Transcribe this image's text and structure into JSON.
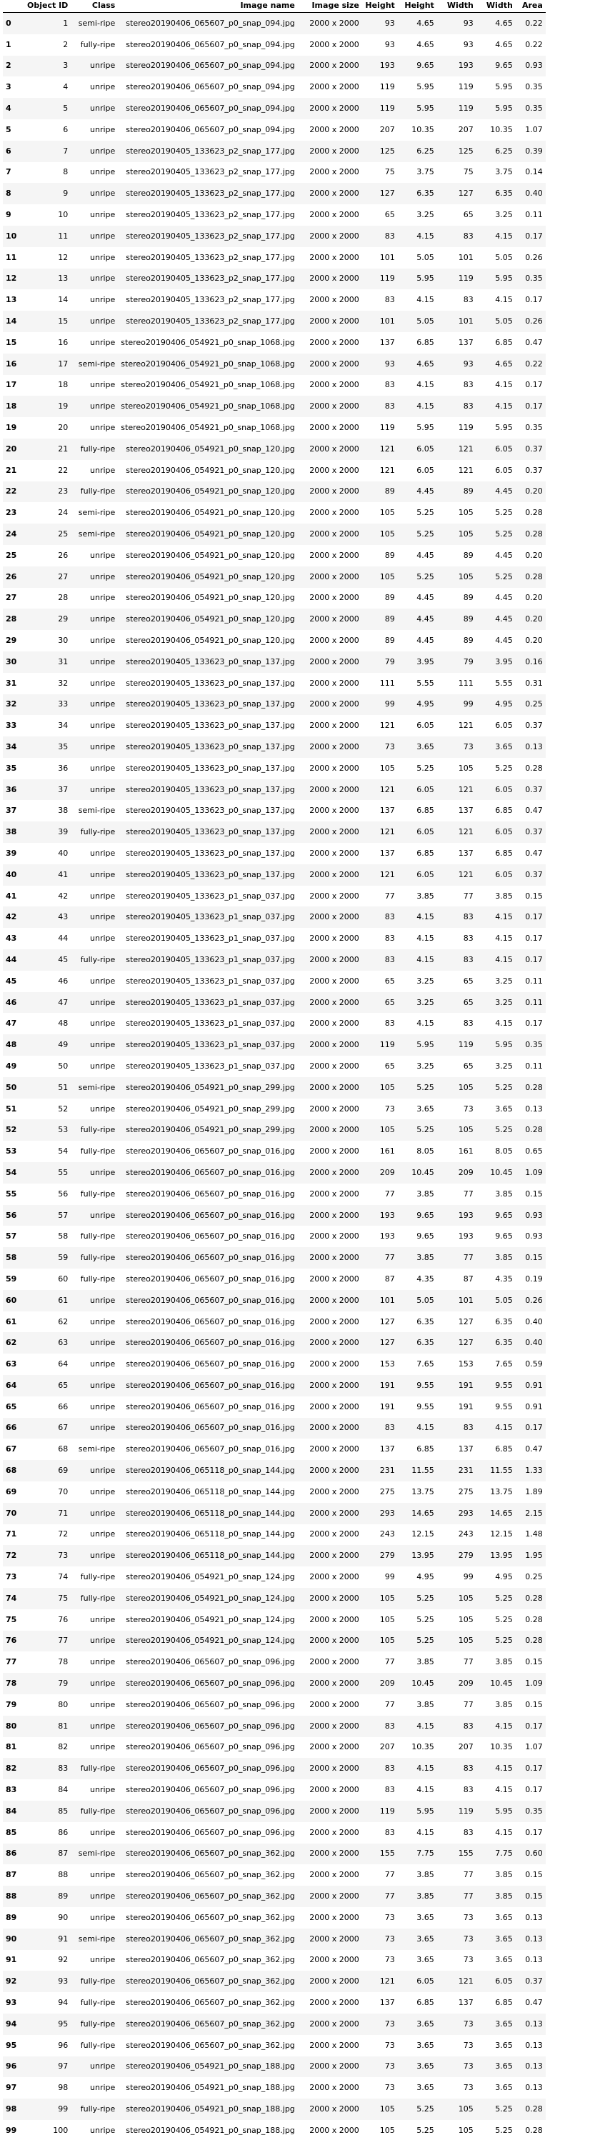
{
  "columns": [
    "",
    "Object ID",
    "Class",
    "Image name",
    "Image size",
    "Height",
    "Height",
    "Width",
    "Width",
    "Area"
  ],
  "rows": [
    [
      "0",
      "1",
      "semi-ripe",
      "stereo20190406_065607_p0_snap_094.jpg",
      "2000 x 2000",
      "93",
      "4.65",
      "93",
      "4.65",
      "0.22"
    ],
    [
      "1",
      "2",
      "fully-ripe",
      "stereo20190406_065607_p0_snap_094.jpg",
      "2000 x 2000",
      "93",
      "4.65",
      "93",
      "4.65",
      "0.22"
    ],
    [
      "2",
      "3",
      "unripe",
      "stereo20190406_065607_p0_snap_094.jpg",
      "2000 x 2000",
      "193",
      "9.65",
      "193",
      "9.65",
      "0.93"
    ],
    [
      "3",
      "4",
      "unripe",
      "stereo20190406_065607_p0_snap_094.jpg",
      "2000 x 2000",
      "119",
      "5.95",
      "119",
      "5.95",
      "0.35"
    ],
    [
      "4",
      "5",
      "unripe",
      "stereo20190406_065607_p0_snap_094.jpg",
      "2000 x 2000",
      "119",
      "5.95",
      "119",
      "5.95",
      "0.35"
    ],
    [
      "5",
      "6",
      "unripe",
      "stereo20190406_065607_p0_snap_094.jpg",
      "2000 x 2000",
      "207",
      "10.35",
      "207",
      "10.35",
      "1.07"
    ],
    [
      "6",
      "7",
      "unripe",
      "stereo20190405_133623_p2_snap_177.jpg",
      "2000 x 2000",
      "125",
      "6.25",
      "125",
      "6.25",
      "0.39"
    ],
    [
      "7",
      "8",
      "unripe",
      "stereo20190405_133623_p2_snap_177.jpg",
      "2000 x 2000",
      "75",
      "3.75",
      "75",
      "3.75",
      "0.14"
    ],
    [
      "8",
      "9",
      "unripe",
      "stereo20190405_133623_p2_snap_177.jpg",
      "2000 x 2000",
      "127",
      "6.35",
      "127",
      "6.35",
      "0.40"
    ],
    [
      "9",
      "10",
      "unripe",
      "stereo20190405_133623_p2_snap_177.jpg",
      "2000 x 2000",
      "65",
      "3.25",
      "65",
      "3.25",
      "0.11"
    ],
    [
      "10",
      "11",
      "unripe",
      "stereo20190405_133623_p2_snap_177.jpg",
      "2000 x 2000",
      "83",
      "4.15",
      "83",
      "4.15",
      "0.17"
    ],
    [
      "11",
      "12",
      "unripe",
      "stereo20190405_133623_p2_snap_177.jpg",
      "2000 x 2000",
      "101",
      "5.05",
      "101",
      "5.05",
      "0.26"
    ],
    [
      "12",
      "13",
      "unripe",
      "stereo20190405_133623_p2_snap_177.jpg",
      "2000 x 2000",
      "119",
      "5.95",
      "119",
      "5.95",
      "0.35"
    ],
    [
      "13",
      "14",
      "unripe",
      "stereo20190405_133623_p2_snap_177.jpg",
      "2000 x 2000",
      "83",
      "4.15",
      "83",
      "4.15",
      "0.17"
    ],
    [
      "14",
      "15",
      "unripe",
      "stereo20190405_133623_p2_snap_177.jpg",
      "2000 x 2000",
      "101",
      "5.05",
      "101",
      "5.05",
      "0.26"
    ],
    [
      "15",
      "16",
      "unripe",
      "stereo20190406_054921_p0_snap_1068.jpg",
      "2000 x 2000",
      "137",
      "6.85",
      "137",
      "6.85",
      "0.47"
    ],
    [
      "16",
      "17",
      "semi-ripe",
      "stereo20190406_054921_p0_snap_1068.jpg",
      "2000 x 2000",
      "93",
      "4.65",
      "93",
      "4.65",
      "0.22"
    ],
    [
      "17",
      "18",
      "unripe",
      "stereo20190406_054921_p0_snap_1068.jpg",
      "2000 x 2000",
      "83",
      "4.15",
      "83",
      "4.15",
      "0.17"
    ],
    [
      "18",
      "19",
      "unripe",
      "stereo20190406_054921_p0_snap_1068.jpg",
      "2000 x 2000",
      "83",
      "4.15",
      "83",
      "4.15",
      "0.17"
    ],
    [
      "19",
      "20",
      "unripe",
      "stereo20190406_054921_p0_snap_1068.jpg",
      "2000 x 2000",
      "119",
      "5.95",
      "119",
      "5.95",
      "0.35"
    ],
    [
      "20",
      "21",
      "fully-ripe",
      "stereo20190406_054921_p0_snap_120.jpg",
      "2000 x 2000",
      "121",
      "6.05",
      "121",
      "6.05",
      "0.37"
    ],
    [
      "21",
      "22",
      "unripe",
      "stereo20190406_054921_p0_snap_120.jpg",
      "2000 x 2000",
      "121",
      "6.05",
      "121",
      "6.05",
      "0.37"
    ],
    [
      "22",
      "23",
      "fully-ripe",
      "stereo20190406_054921_p0_snap_120.jpg",
      "2000 x 2000",
      "89",
      "4.45",
      "89",
      "4.45",
      "0.20"
    ],
    [
      "23",
      "24",
      "semi-ripe",
      "stereo20190406_054921_p0_snap_120.jpg",
      "2000 x 2000",
      "105",
      "5.25",
      "105",
      "5.25",
      "0.28"
    ],
    [
      "24",
      "25",
      "semi-ripe",
      "stereo20190406_054921_p0_snap_120.jpg",
      "2000 x 2000",
      "105",
      "5.25",
      "105",
      "5.25",
      "0.28"
    ],
    [
      "25",
      "26",
      "unripe",
      "stereo20190406_054921_p0_snap_120.jpg",
      "2000 x 2000",
      "89",
      "4.45",
      "89",
      "4.45",
      "0.20"
    ],
    [
      "26",
      "27",
      "unripe",
      "stereo20190406_054921_p0_snap_120.jpg",
      "2000 x 2000",
      "105",
      "5.25",
      "105",
      "5.25",
      "0.28"
    ],
    [
      "27",
      "28",
      "unripe",
      "stereo20190406_054921_p0_snap_120.jpg",
      "2000 x 2000",
      "89",
      "4.45",
      "89",
      "4.45",
      "0.20"
    ],
    [
      "28",
      "29",
      "unripe",
      "stereo20190406_054921_p0_snap_120.jpg",
      "2000 x 2000",
      "89",
      "4.45",
      "89",
      "4.45",
      "0.20"
    ],
    [
      "29",
      "30",
      "unripe",
      "stereo20190406_054921_p0_snap_120.jpg",
      "2000 x 2000",
      "89",
      "4.45",
      "89",
      "4.45",
      "0.20"
    ],
    [
      "30",
      "31",
      "unripe",
      "stereo20190405_133623_p0_snap_137.jpg",
      "2000 x 2000",
      "79",
      "3.95",
      "79",
      "3.95",
      "0.16"
    ],
    [
      "31",
      "32",
      "unripe",
      "stereo20190405_133623_p0_snap_137.jpg",
      "2000 x 2000",
      "111",
      "5.55",
      "111",
      "5.55",
      "0.31"
    ],
    [
      "32",
      "33",
      "unripe",
      "stereo20190405_133623_p0_snap_137.jpg",
      "2000 x 2000",
      "99",
      "4.95",
      "99",
      "4.95",
      "0.25"
    ],
    [
      "33",
      "34",
      "unripe",
      "stereo20190405_133623_p0_snap_137.jpg",
      "2000 x 2000",
      "121",
      "6.05",
      "121",
      "6.05",
      "0.37"
    ],
    [
      "34",
      "35",
      "unripe",
      "stereo20190405_133623_p0_snap_137.jpg",
      "2000 x 2000",
      "73",
      "3.65",
      "73",
      "3.65",
      "0.13"
    ],
    [
      "35",
      "36",
      "unripe",
      "stereo20190405_133623_p0_snap_137.jpg",
      "2000 x 2000",
      "105",
      "5.25",
      "105",
      "5.25",
      "0.28"
    ],
    [
      "36",
      "37",
      "unripe",
      "stereo20190405_133623_p0_snap_137.jpg",
      "2000 x 2000",
      "121",
      "6.05",
      "121",
      "6.05",
      "0.37"
    ],
    [
      "37",
      "38",
      "semi-ripe",
      "stereo20190405_133623_p0_snap_137.jpg",
      "2000 x 2000",
      "137",
      "6.85",
      "137",
      "6.85",
      "0.47"
    ],
    [
      "38",
      "39",
      "fully-ripe",
      "stereo20190405_133623_p0_snap_137.jpg",
      "2000 x 2000",
      "121",
      "6.05",
      "121",
      "6.05",
      "0.37"
    ],
    [
      "39",
      "40",
      "unripe",
      "stereo20190405_133623_p0_snap_137.jpg",
      "2000 x 2000",
      "137",
      "6.85",
      "137",
      "6.85",
      "0.47"
    ],
    [
      "40",
      "41",
      "unripe",
      "stereo20190405_133623_p0_snap_137.jpg",
      "2000 x 2000",
      "121",
      "6.05",
      "121",
      "6.05",
      "0.37"
    ],
    [
      "41",
      "42",
      "unripe",
      "stereo20190405_133623_p1_snap_037.jpg",
      "2000 x 2000",
      "77",
      "3.85",
      "77",
      "3.85",
      "0.15"
    ],
    [
      "42",
      "43",
      "unripe",
      "stereo20190405_133623_p1_snap_037.jpg",
      "2000 x 2000",
      "83",
      "4.15",
      "83",
      "4.15",
      "0.17"
    ],
    [
      "43",
      "44",
      "unripe",
      "stereo20190405_133623_p1_snap_037.jpg",
      "2000 x 2000",
      "83",
      "4.15",
      "83",
      "4.15",
      "0.17"
    ],
    [
      "44",
      "45",
      "fully-ripe",
      "stereo20190405_133623_p1_snap_037.jpg",
      "2000 x 2000",
      "83",
      "4.15",
      "83",
      "4.15",
      "0.17"
    ],
    [
      "45",
      "46",
      "unripe",
      "stereo20190405_133623_p1_snap_037.jpg",
      "2000 x 2000",
      "65",
      "3.25",
      "65",
      "3.25",
      "0.11"
    ],
    [
      "46",
      "47",
      "unripe",
      "stereo20190405_133623_p1_snap_037.jpg",
      "2000 x 2000",
      "65",
      "3.25",
      "65",
      "3.25",
      "0.11"
    ],
    [
      "47",
      "48",
      "unripe",
      "stereo20190405_133623_p1_snap_037.jpg",
      "2000 x 2000",
      "83",
      "4.15",
      "83",
      "4.15",
      "0.17"
    ],
    [
      "48",
      "49",
      "unripe",
      "stereo20190405_133623_p1_snap_037.jpg",
      "2000 x 2000",
      "119",
      "5.95",
      "119",
      "5.95",
      "0.35"
    ],
    [
      "49",
      "50",
      "unripe",
      "stereo20190405_133623_p1_snap_037.jpg",
      "2000 x 2000",
      "65",
      "3.25",
      "65",
      "3.25",
      "0.11"
    ],
    [
      "50",
      "51",
      "semi-ripe",
      "stereo20190406_054921_p0_snap_299.jpg",
      "2000 x 2000",
      "105",
      "5.25",
      "105",
      "5.25",
      "0.28"
    ],
    [
      "51",
      "52",
      "unripe",
      "stereo20190406_054921_p0_snap_299.jpg",
      "2000 x 2000",
      "73",
      "3.65",
      "73",
      "3.65",
      "0.13"
    ],
    [
      "52",
      "53",
      "fully-ripe",
      "stereo20190406_054921_p0_snap_299.jpg",
      "2000 x 2000",
      "105",
      "5.25",
      "105",
      "5.25",
      "0.28"
    ],
    [
      "53",
      "54",
      "fully-ripe",
      "stereo20190406_065607_p0_snap_016.jpg",
      "2000 x 2000",
      "161",
      "8.05",
      "161",
      "8.05",
      "0.65"
    ],
    [
      "54",
      "55",
      "unripe",
      "stereo20190406_065607_p0_snap_016.jpg",
      "2000 x 2000",
      "209",
      "10.45",
      "209",
      "10.45",
      "1.09"
    ],
    [
      "55",
      "56",
      "fully-ripe",
      "stereo20190406_065607_p0_snap_016.jpg",
      "2000 x 2000",
      "77",
      "3.85",
      "77",
      "3.85",
      "0.15"
    ],
    [
      "56",
      "57",
      "unripe",
      "stereo20190406_065607_p0_snap_016.jpg",
      "2000 x 2000",
      "193",
      "9.65",
      "193",
      "9.65",
      "0.93"
    ],
    [
      "57",
      "58",
      "fully-ripe",
      "stereo20190406_065607_p0_snap_016.jpg",
      "2000 x 2000",
      "193",
      "9.65",
      "193",
      "9.65",
      "0.93"
    ],
    [
      "58",
      "59",
      "fully-ripe",
      "stereo20190406_065607_p0_snap_016.jpg",
      "2000 x 2000",
      "77",
      "3.85",
      "77",
      "3.85",
      "0.15"
    ],
    [
      "59",
      "60",
      "fully-ripe",
      "stereo20190406_065607_p0_snap_016.jpg",
      "2000 x 2000",
      "87",
      "4.35",
      "87",
      "4.35",
      "0.19"
    ],
    [
      "60",
      "61",
      "unripe",
      "stereo20190406_065607_p0_snap_016.jpg",
      "2000 x 2000",
      "101",
      "5.05",
      "101",
      "5.05",
      "0.26"
    ],
    [
      "61",
      "62",
      "unripe",
      "stereo20190406_065607_p0_snap_016.jpg",
      "2000 x 2000",
      "127",
      "6.35",
      "127",
      "6.35",
      "0.40"
    ],
    [
      "62",
      "63",
      "unripe",
      "stereo20190406_065607_p0_snap_016.jpg",
      "2000 x 2000",
      "127",
      "6.35",
      "127",
      "6.35",
      "0.40"
    ],
    [
      "63",
      "64",
      "unripe",
      "stereo20190406_065607_p0_snap_016.jpg",
      "2000 x 2000",
      "153",
      "7.65",
      "153",
      "7.65",
      "0.59"
    ],
    [
      "64",
      "65",
      "unripe",
      "stereo20190406_065607_p0_snap_016.jpg",
      "2000 x 2000",
      "191",
      "9.55",
      "191",
      "9.55",
      "0.91"
    ],
    [
      "65",
      "66",
      "unripe",
      "stereo20190406_065607_p0_snap_016.jpg",
      "2000 x 2000",
      "191",
      "9.55",
      "191",
      "9.55",
      "0.91"
    ],
    [
      "66",
      "67",
      "unripe",
      "stereo20190406_065607_p0_snap_016.jpg",
      "2000 x 2000",
      "83",
      "4.15",
      "83",
      "4.15",
      "0.17"
    ],
    [
      "67",
      "68",
      "semi-ripe",
      "stereo20190406_065607_p0_snap_016.jpg",
      "2000 x 2000",
      "137",
      "6.85",
      "137",
      "6.85",
      "0.47"
    ],
    [
      "68",
      "69",
      "unripe",
      "stereo20190406_065118_p0_snap_144.jpg",
      "2000 x 2000",
      "231",
      "11.55",
      "231",
      "11.55",
      "1.33"
    ],
    [
      "69",
      "70",
      "unripe",
      "stereo20190406_065118_p0_snap_144.jpg",
      "2000 x 2000",
      "275",
      "13.75",
      "275",
      "13.75",
      "1.89"
    ],
    [
      "70",
      "71",
      "unripe",
      "stereo20190406_065118_p0_snap_144.jpg",
      "2000 x 2000",
      "293",
      "14.65",
      "293",
      "14.65",
      "2.15"
    ],
    [
      "71",
      "72",
      "unripe",
      "stereo20190406_065118_p0_snap_144.jpg",
      "2000 x 2000",
      "243",
      "12.15",
      "243",
      "12.15",
      "1.48"
    ],
    [
      "72",
      "73",
      "unripe",
      "stereo20190406_065118_p0_snap_144.jpg",
      "2000 x 2000",
      "279",
      "13.95",
      "279",
      "13.95",
      "1.95"
    ],
    [
      "73",
      "74",
      "fully-ripe",
      "stereo20190406_054921_p0_snap_124.jpg",
      "2000 x 2000",
      "99",
      "4.95",
      "99",
      "4.95",
      "0.25"
    ],
    [
      "74",
      "75",
      "fully-ripe",
      "stereo20190406_054921_p0_snap_124.jpg",
      "2000 x 2000",
      "105",
      "5.25",
      "105",
      "5.25",
      "0.28"
    ],
    [
      "75",
      "76",
      "unripe",
      "stereo20190406_054921_p0_snap_124.jpg",
      "2000 x 2000",
      "105",
      "5.25",
      "105",
      "5.25",
      "0.28"
    ],
    [
      "76",
      "77",
      "unripe",
      "stereo20190406_054921_p0_snap_124.jpg",
      "2000 x 2000",
      "105",
      "5.25",
      "105",
      "5.25",
      "0.28"
    ],
    [
      "77",
      "78",
      "unripe",
      "stereo20190406_065607_p0_snap_096.jpg",
      "2000 x 2000",
      "77",
      "3.85",
      "77",
      "3.85",
      "0.15"
    ],
    [
      "78",
      "79",
      "unripe",
      "stereo20190406_065607_p0_snap_096.jpg",
      "2000 x 2000",
      "209",
      "10.45",
      "209",
      "10.45",
      "1.09"
    ],
    [
      "79",
      "80",
      "unripe",
      "stereo20190406_065607_p0_snap_096.jpg",
      "2000 x 2000",
      "77",
      "3.85",
      "77",
      "3.85",
      "0.15"
    ],
    [
      "80",
      "81",
      "unripe",
      "stereo20190406_065607_p0_snap_096.jpg",
      "2000 x 2000",
      "83",
      "4.15",
      "83",
      "4.15",
      "0.17"
    ],
    [
      "81",
      "82",
      "unripe",
      "stereo20190406_065607_p0_snap_096.jpg",
      "2000 x 2000",
      "207",
      "10.35",
      "207",
      "10.35",
      "1.07"
    ],
    [
      "82",
      "83",
      "fully-ripe",
      "stereo20190406_065607_p0_snap_096.jpg",
      "2000 x 2000",
      "83",
      "4.15",
      "83",
      "4.15",
      "0.17"
    ],
    [
      "83",
      "84",
      "unripe",
      "stereo20190406_065607_p0_snap_096.jpg",
      "2000 x 2000",
      "83",
      "4.15",
      "83",
      "4.15",
      "0.17"
    ],
    [
      "84",
      "85",
      "fully-ripe",
      "stereo20190406_065607_p0_snap_096.jpg",
      "2000 x 2000",
      "119",
      "5.95",
      "119",
      "5.95",
      "0.35"
    ],
    [
      "85",
      "86",
      "unripe",
      "stereo20190406_065607_p0_snap_096.jpg",
      "2000 x 2000",
      "83",
      "4.15",
      "83",
      "4.15",
      "0.17"
    ],
    [
      "86",
      "87",
      "semi-ripe",
      "stereo20190406_065607_p0_snap_362.jpg",
      "2000 x 2000",
      "155",
      "7.75",
      "155",
      "7.75",
      "0.60"
    ],
    [
      "87",
      "88",
      "unripe",
      "stereo20190406_065607_p0_snap_362.jpg",
      "2000 x 2000",
      "77",
      "3.85",
      "77",
      "3.85",
      "0.15"
    ],
    [
      "88",
      "89",
      "unripe",
      "stereo20190406_065607_p0_snap_362.jpg",
      "2000 x 2000",
      "77",
      "3.85",
      "77",
      "3.85",
      "0.15"
    ],
    [
      "89",
      "90",
      "unripe",
      "stereo20190406_065607_p0_snap_362.jpg",
      "2000 x 2000",
      "73",
      "3.65",
      "73",
      "3.65",
      "0.13"
    ],
    [
      "90",
      "91",
      "semi-ripe",
      "stereo20190406_065607_p0_snap_362.jpg",
      "2000 x 2000",
      "73",
      "3.65",
      "73",
      "3.65",
      "0.13"
    ],
    [
      "91",
      "92",
      "unripe",
      "stereo20190406_065607_p0_snap_362.jpg",
      "2000 x 2000",
      "73",
      "3.65",
      "73",
      "3.65",
      "0.13"
    ],
    [
      "92",
      "93",
      "fully-ripe",
      "stereo20190406_065607_p0_snap_362.jpg",
      "2000 x 2000",
      "121",
      "6.05",
      "121",
      "6.05",
      "0.37"
    ],
    [
      "93",
      "94",
      "fully-ripe",
      "stereo20190406_065607_p0_snap_362.jpg",
      "2000 x 2000",
      "137",
      "6.85",
      "137",
      "6.85",
      "0.47"
    ],
    [
      "94",
      "95",
      "fully-ripe",
      "stereo20190406_065607_p0_snap_362.jpg",
      "2000 x 2000",
      "73",
      "3.65",
      "73",
      "3.65",
      "0.13"
    ],
    [
      "95",
      "96",
      "fully-ripe",
      "stereo20190406_065607_p0_snap_362.jpg",
      "2000 x 2000",
      "73",
      "3.65",
      "73",
      "3.65",
      "0.13"
    ],
    [
      "96",
      "97",
      "unripe",
      "stereo20190406_054921_p0_snap_188.jpg",
      "2000 x 2000",
      "73",
      "3.65",
      "73",
      "3.65",
      "0.13"
    ],
    [
      "97",
      "98",
      "unripe",
      "stereo20190406_054921_p0_snap_188.jpg",
      "2000 x 2000",
      "73",
      "3.65",
      "73",
      "3.65",
      "0.13"
    ],
    [
      "98",
      "99",
      "fully-ripe",
      "stereo20190406_054921_p0_snap_188.jpg",
      "2000 x 2000",
      "105",
      "5.25",
      "105",
      "5.25",
      "0.28"
    ],
    [
      "99",
      "100",
      "unripe",
      "stereo20190406_054921_p0_snap_188.jpg",
      "2000 x 2000",
      "105",
      "5.25",
      "105",
      "5.25",
      "0.28"
    ]
  ]
}
